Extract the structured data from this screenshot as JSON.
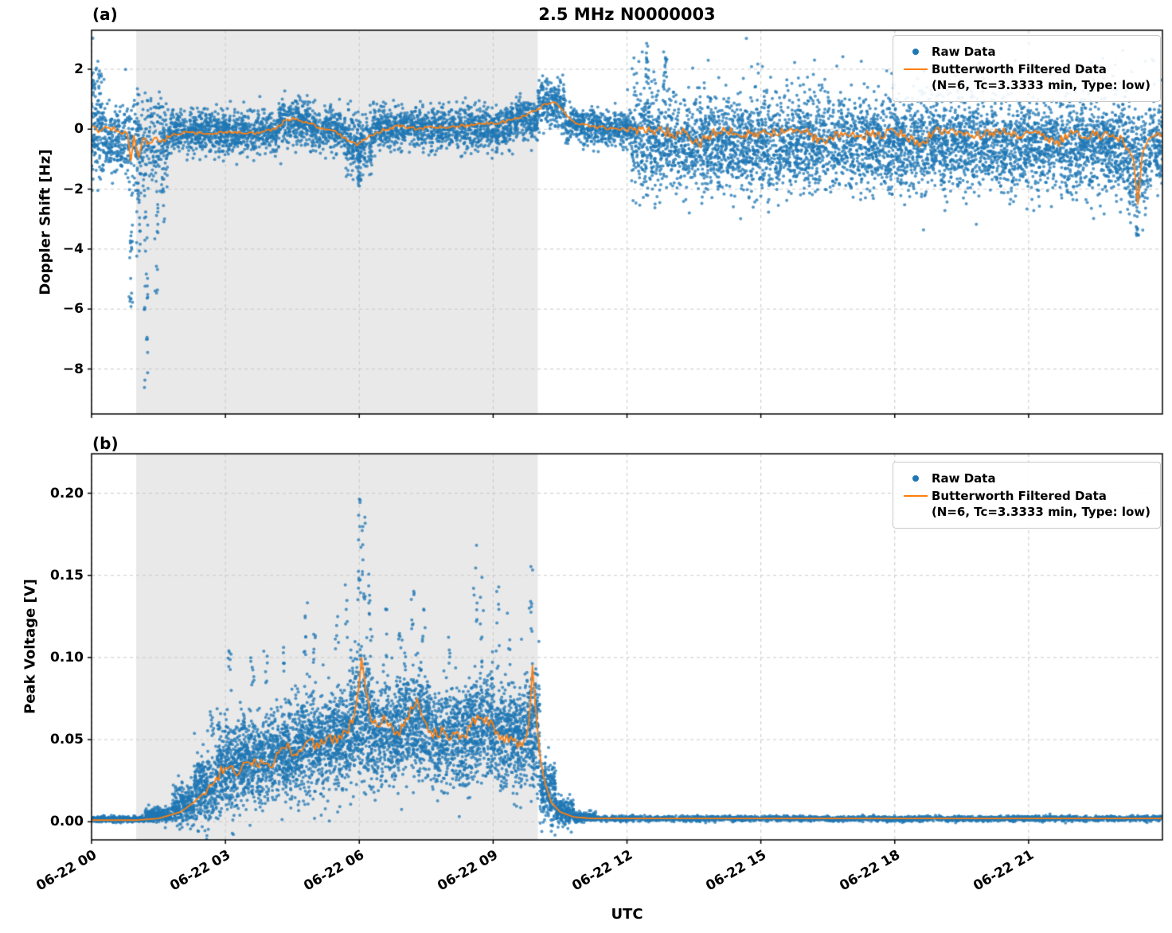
{
  "figure": {
    "title": "2.5 MHz N0000003",
    "xlabel": "UTC",
    "background": "#ffffff",
    "xtick_hours": [
      0,
      3,
      6,
      9,
      12,
      15,
      18,
      21
    ],
    "xtick_labels": [
      "06-22 00",
      "06-22 03",
      "06-22 06",
      "06-22 09",
      "06-22 12",
      "06-22 15",
      "06-22 18",
      "06-22 21"
    ]
  },
  "colors": {
    "raw": "#1f77b4",
    "filtered": "#ff7f0e",
    "shade": "#e9e9e9",
    "grid": "#c8c8c8",
    "spine": "#000000"
  },
  "legend": {
    "raw_label": "Raw Data",
    "filtered_label": "Butterworth Filtered Data",
    "filtered_params": "(N=6, Tc=3.3333 min, Type: low)"
  },
  "chart_data": [
    {
      "id": "a",
      "panel_label": "(a)",
      "type": "scatter+line",
      "title": "2.5 MHz N0000003",
      "ylabel": "Doppler Shift [Hz]",
      "ylim": [
        -9.5,
        3.3
      ],
      "yticks": [
        2,
        0,
        -2,
        -4,
        -6,
        -8
      ],
      "ytick_labels": [
        "2",
        "0",
        "−2",
        "−4",
        "−6",
        "−8"
      ],
      "xlim": [
        0,
        24
      ],
      "shaded_region_hours": [
        1.0,
        10.0
      ],
      "grid": true,
      "legend_position": "upper right",
      "raw_bins": [
        [
          0,
          0.3,
          -0.1,
          0.85,
          130
        ],
        [
          0.3,
          0.9,
          -0.35,
          0.6,
          220
        ],
        [
          0.9,
          1.7,
          -0.45,
          0.75,
          260
        ],
        [
          1.7,
          4.2,
          -0.1,
          0.35,
          950
        ],
        [
          4.2,
          4.9,
          0.25,
          0.4,
          270
        ],
        [
          4.9,
          5.7,
          0,
          0.35,
          290
        ],
        [
          5.7,
          6.3,
          -0.45,
          0.5,
          230
        ],
        [
          6.3,
          9.4,
          0.05,
          0.35,
          1150
        ],
        [
          9.4,
          10.0,
          0.35,
          0.35,
          230
        ],
        [
          10.0,
          10.6,
          0.8,
          0.38,
          230
        ],
        [
          10.6,
          11.4,
          0.15,
          0.3,
          290
        ],
        [
          11.4,
          12.1,
          0,
          0.28,
          250
        ],
        [
          12.1,
          13.0,
          -0.3,
          0.9,
          420
        ],
        [
          13.0,
          16.0,
          -0.5,
          0.8,
          1350
        ],
        [
          16.0,
          20.0,
          -0.5,
          0.78,
          1750
        ],
        [
          20.0,
          23.2,
          -0.55,
          0.75,
          1450
        ],
        [
          23.2,
          23.7,
          -1.1,
          0.9,
          210
        ],
        [
          23.7,
          24,
          -0.5,
          0.6,
          130
        ],
        [
          12,
          24,
          1.6,
          0.55,
          80
        ],
        [
          0,
          0.25,
          1.6,
          0.5,
          25
        ]
      ],
      "raw_streaks": [
        [
          0.88,
          -6.3,
          -1.2,
          22
        ],
        [
          1.05,
          -4.6,
          -1.2,
          18
        ],
        [
          1.22,
          -8.8,
          -2.0,
          26
        ],
        [
          1.45,
          -5.5,
          -1.5,
          14
        ],
        [
          1.6,
          -3.2,
          -1.2,
          10
        ],
        [
          6.0,
          -1.9,
          -0.8,
          25
        ],
        [
          12.45,
          1.5,
          2.9,
          14
        ],
        [
          12.85,
          1.4,
          2.6,
          10
        ],
        [
          23.45,
          -3.6,
          -1.6,
          20
        ]
      ],
      "line": {
        "points": [
          [
            0,
            0.1
          ],
          [
            0.2,
            -0.05
          ],
          [
            0.4,
            0.05
          ],
          [
            0.6,
            -0.05
          ],
          [
            0.8,
            -0.15
          ],
          [
            0.88,
            -1.05
          ],
          [
            0.95,
            -0.2
          ],
          [
            1.05,
            -0.95
          ],
          [
            1.15,
            -0.3
          ],
          [
            1.25,
            -0.5
          ],
          [
            1.4,
            -0.3
          ],
          [
            1.6,
            -0.35
          ],
          [
            1.8,
            -0.2
          ],
          [
            2.2,
            -0.1
          ],
          [
            2.6,
            -0.15
          ],
          [
            3,
            -0.1
          ],
          [
            3.4,
            -0.15
          ],
          [
            3.8,
            -0.1
          ],
          [
            4.1,
            0
          ],
          [
            4.35,
            0.3
          ],
          [
            4.6,
            0.35
          ],
          [
            4.85,
            0.2
          ],
          [
            5.1,
            0.05
          ],
          [
            5.4,
            -0.05
          ],
          [
            5.7,
            -0.3
          ],
          [
            5.95,
            -0.55
          ],
          [
            6.15,
            -0.35
          ],
          [
            6.4,
            -0.1
          ],
          [
            6.7,
            0.05
          ],
          [
            7,
            0.1
          ],
          [
            7.3,
            0
          ],
          [
            7.6,
            0.1
          ],
          [
            7.9,
            0.05
          ],
          [
            8.2,
            0.1
          ],
          [
            8.6,
            0.15
          ],
          [
            9,
            0.2
          ],
          [
            9.4,
            0.3
          ],
          [
            9.7,
            0.45
          ],
          [
            9.95,
            0.6
          ],
          [
            10.15,
            0.85
          ],
          [
            10.35,
            0.9
          ],
          [
            10.55,
            0.65
          ],
          [
            10.75,
            0.3
          ],
          [
            10.95,
            0.15
          ],
          [
            11.2,
            0.1
          ],
          [
            11.5,
            0.05
          ],
          [
            11.8,
            0
          ],
          [
            12.1,
            0.05
          ],
          [
            12.4,
            -0.1
          ],
          [
            12.7,
            0
          ],
          [
            13,
            -0.15
          ],
          [
            13.3,
            -0.1
          ],
          [
            13.6,
            -0.5
          ],
          [
            13.9,
            -0.15
          ],
          [
            14.2,
            -0.05
          ],
          [
            14.5,
            -0.2
          ],
          [
            14.8,
            -0.1
          ],
          [
            15.2,
            -0.15
          ],
          [
            15.6,
            -0.05
          ],
          [
            16,
            -0.1
          ],
          [
            16.45,
            -0.5
          ],
          [
            16.8,
            -0.1
          ],
          [
            17.2,
            -0.25
          ],
          [
            17.6,
            -0.15
          ],
          [
            18,
            -0.1
          ],
          [
            18.6,
            -0.45
          ],
          [
            18.9,
            -0.05
          ],
          [
            19.2,
            -0.15
          ],
          [
            19.6,
            -0.1
          ],
          [
            20,
            -0.2
          ],
          [
            20.4,
            -0.1
          ],
          [
            20.8,
            -0.25
          ],
          [
            21.2,
            -0.15
          ],
          [
            21.6,
            -0.5
          ],
          [
            22,
            -0.15
          ],
          [
            22.4,
            -0.2
          ],
          [
            22.8,
            -0.25
          ],
          [
            23.1,
            -0.3
          ],
          [
            23.35,
            -1
          ],
          [
            23.45,
            -2.5
          ],
          [
            23.55,
            -0.8
          ],
          [
            23.7,
            -0.3
          ],
          [
            23.85,
            -0.2
          ],
          [
            24,
            -0.15
          ]
        ],
        "noise": [
          [
            0,
            1.8,
            0.1
          ],
          [
            1.8,
            12,
            0.06
          ],
          [
            12,
            23.2,
            0.17
          ],
          [
            23.7,
            24,
            0.1
          ]
        ]
      }
    },
    {
      "id": "b",
      "panel_label": "(b)",
      "type": "scatter+line",
      "ylabel": "Peak Voltage [V]",
      "ylim": [
        -0.011,
        0.224
      ],
      "yticks": [
        0.2,
        0.15,
        0.1,
        0.05,
        0.0
      ],
      "ytick_labels": [
        "0.20",
        "0.15",
        "0.10",
        "0.05",
        "0.00"
      ],
      "xlim": [
        0,
        24
      ],
      "shaded_region_hours": [
        1.0,
        10.0
      ],
      "grid": true,
      "legend_position": "upper right",
      "raw_bins": [
        [
          0,
          1.2,
          0.0015,
          0.0008,
          420
        ],
        [
          1.2,
          1.8,
          0.004,
          0.002,
          220
        ],
        [
          1.8,
          2.3,
          0.01,
          0.006,
          230
        ],
        [
          2.3,
          2.8,
          0.02,
          0.011,
          270
        ],
        [
          2.8,
          3.3,
          0.033,
          0.013,
          320
        ],
        [
          3.3,
          4,
          0.038,
          0.013,
          430
        ],
        [
          4,
          4.6,
          0.042,
          0.014,
          390
        ],
        [
          4.6,
          5.2,
          0.048,
          0.015,
          390
        ],
        [
          5.2,
          5.8,
          0.052,
          0.015,
          390
        ],
        [
          5.8,
          6.3,
          0.065,
          0.02,
          360
        ],
        [
          6.3,
          7,
          0.055,
          0.016,
          430
        ],
        [
          7,
          7.6,
          0.06,
          0.017,
          390
        ],
        [
          7.6,
          8.4,
          0.052,
          0.015,
          460
        ],
        [
          8.4,
          9,
          0.058,
          0.016,
          390
        ],
        [
          9,
          9.6,
          0.052,
          0.015,
          370
        ],
        [
          9.6,
          10.05,
          0.055,
          0.018,
          300
        ],
        [
          10.05,
          10.4,
          0.018,
          0.01,
          210
        ],
        [
          10.4,
          10.8,
          0.006,
          0.004,
          190
        ],
        [
          10.8,
          11.3,
          0.003,
          0.0015,
          190
        ],
        [
          11.3,
          24,
          0.002,
          0.0008,
          2700
        ]
      ],
      "raw_streaks": [
        [
          2.7,
          0.05,
          0.075,
          10
        ],
        [
          3.1,
          0.08,
          0.105,
          8
        ],
        [
          3.6,
          0.08,
          0.1,
          8
        ],
        [
          3.9,
          0.08,
          0.105,
          6
        ],
        [
          4.3,
          0.09,
          0.11,
          6
        ],
        [
          4.8,
          0.1,
          0.135,
          8
        ],
        [
          5,
          0.09,
          0.115,
          6
        ],
        [
          5.5,
          0.1,
          0.125,
          6
        ],
        [
          5.7,
          0.11,
          0.145,
          6
        ],
        [
          6,
          0.13,
          0.21,
          14
        ],
        [
          6.1,
          0.12,
          0.19,
          12
        ],
        [
          6.2,
          0.11,
          0.16,
          8
        ],
        [
          6.6,
          0.1,
          0.13,
          6
        ],
        [
          6.9,
          0.1,
          0.12,
          5
        ],
        [
          7.2,
          0.11,
          0.145,
          8
        ],
        [
          7.45,
          0.1,
          0.135,
          6
        ],
        [
          8,
          0.09,
          0.115,
          5
        ],
        [
          8.6,
          0.12,
          0.17,
          8
        ],
        [
          8.75,
          0.11,
          0.155,
          6
        ],
        [
          9.1,
          0.1,
          0.145,
          7
        ],
        [
          9.35,
          0.09,
          0.13,
          5
        ],
        [
          9.85,
          0.11,
          0.162,
          9
        ]
      ],
      "line": {
        "points": [
          [
            0,
            0.001
          ],
          [
            1.0,
            0.001
          ],
          [
            1.5,
            0.002
          ],
          [
            2.0,
            0.006
          ],
          [
            2.3,
            0.012
          ],
          [
            2.6,
            0.02
          ],
          [
            2.8,
            0.027
          ],
          [
            3.0,
            0.033
          ],
          [
            3.2,
            0.03
          ],
          [
            3.4,
            0.036
          ],
          [
            3.6,
            0.034
          ],
          [
            3.8,
            0.038
          ],
          [
            4.0,
            0.033
          ],
          [
            4.2,
            0.042
          ],
          [
            4.4,
            0.048
          ],
          [
            4.5,
            0.04
          ],
          [
            4.7,
            0.043
          ],
          [
            4.9,
            0.05
          ],
          [
            5.1,
            0.045
          ],
          [
            5.3,
            0.052
          ],
          [
            5.5,
            0.048
          ],
          [
            5.7,
            0.055
          ],
          [
            5.85,
            0.06
          ],
          [
            5.95,
            0.075
          ],
          [
            6.05,
            0.1
          ],
          [
            6.15,
            0.08
          ],
          [
            6.25,
            0.062
          ],
          [
            6.4,
            0.058
          ],
          [
            6.55,
            0.065
          ],
          [
            6.7,
            0.06
          ],
          [
            6.85,
            0.055
          ],
          [
            7.0,
            0.058
          ],
          [
            7.15,
            0.07
          ],
          [
            7.3,
            0.075
          ],
          [
            7.45,
            0.062
          ],
          [
            7.6,
            0.055
          ],
          [
            7.75,
            0.052
          ],
          [
            7.9,
            0.055
          ],
          [
            8.05,
            0.05
          ],
          [
            8.2,
            0.055
          ],
          [
            8.35,
            0.052
          ],
          [
            8.5,
            0.058
          ],
          [
            8.65,
            0.065
          ],
          [
            8.8,
            0.06
          ],
          [
            8.95,
            0.062
          ],
          [
            9.1,
            0.055
          ],
          [
            9.25,
            0.048
          ],
          [
            9.4,
            0.052
          ],
          [
            9.55,
            0.045
          ],
          [
            9.7,
            0.05
          ],
          [
            9.8,
            0.06
          ],
          [
            9.88,
            0.095
          ],
          [
            9.95,
            0.07
          ],
          [
            10.05,
            0.04
          ],
          [
            10.15,
            0.025
          ],
          [
            10.3,
            0.012
          ],
          [
            10.5,
            0.006
          ],
          [
            10.8,
            0.003
          ],
          [
            11.2,
            0.002
          ],
          [
            12,
            0.002
          ],
          [
            14,
            0.002
          ],
          [
            16,
            0.002
          ],
          [
            18,
            0.002
          ],
          [
            20,
            0.002
          ],
          [
            22,
            0.002
          ],
          [
            24,
            0.002
          ]
        ],
        "noise": [
          [
            2.5,
            10,
            0.004
          ]
        ]
      }
    }
  ]
}
